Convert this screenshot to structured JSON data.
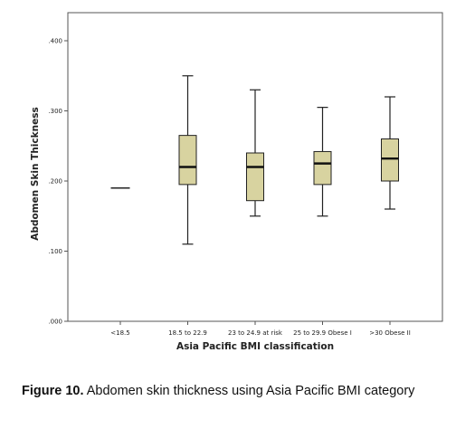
{
  "chart_data": {
    "type": "boxplot",
    "xlabel": "Asia Pacific BMI classification",
    "ylabel": "Abdomen Skin Thickness",
    "ylim": [
      0,
      0.44
    ],
    "yticks": [
      {
        "value": 0,
        "label": ".000"
      },
      {
        "value": 0.1,
        "label": ".100"
      },
      {
        "value": 0.2,
        "label": ".200"
      },
      {
        "value": 0.3,
        "label": ".300"
      },
      {
        "value": 0.4,
        "label": ".400"
      }
    ],
    "grid": false,
    "box_color": "#d8d3a0",
    "categories": [
      "<18.5",
      "18.5 to 22.9",
      "23 to 24.9 at risk",
      "25 to 29.9 Obese I",
      ">30 Obese II"
    ],
    "boxes": [
      {
        "min": 0.19,
        "q1": 0.19,
        "median": 0.19,
        "q3": 0.19,
        "max": 0.19
      },
      {
        "min": 0.11,
        "q1": 0.195,
        "median": 0.22,
        "q3": 0.265,
        "max": 0.35
      },
      {
        "min": 0.15,
        "q1": 0.172,
        "median": 0.22,
        "q3": 0.24,
        "max": 0.33
      },
      {
        "min": 0.15,
        "q1": 0.195,
        "median": 0.225,
        "q3": 0.242,
        "max": 0.305
      },
      {
        "min": 0.16,
        "q1": 0.2,
        "median": 0.232,
        "q3": 0.26,
        "max": 0.32
      }
    ]
  },
  "caption": {
    "label": "Figure 10.",
    "text": " Abdomen skin thickness using Asia Pacific BMI category"
  }
}
